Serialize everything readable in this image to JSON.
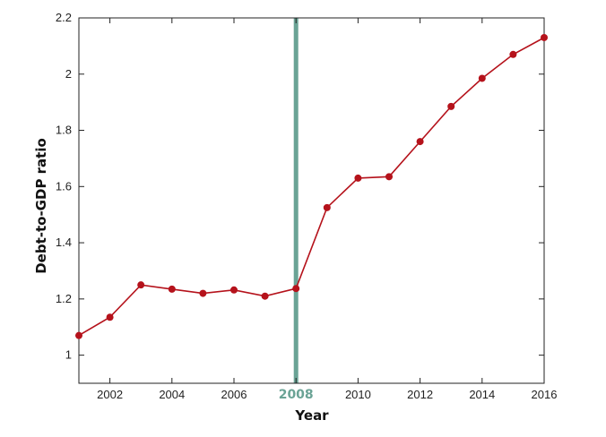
{
  "chart_data": {
    "type": "line",
    "title": "",
    "xlabel": "Year",
    "ylabel": "Debt-to-GDP ratio",
    "xlim": [
      2001,
      2016
    ],
    "ylim": [
      0.9,
      2.2
    ],
    "xticks": [
      2002,
      2004,
      2006,
      2008,
      2010,
      2012,
      2014,
      2016
    ],
    "xtick_labels": [
      "2002",
      "2004",
      "2006",
      "2008",
      "2010",
      "2012",
      "2014",
      "2016"
    ],
    "yticks": [
      1,
      1.2,
      1.4,
      1.6,
      1.8,
      2,
      2.2
    ],
    "ytick_labels": [
      "1",
      "1.2",
      "1.4",
      "1.6",
      "1.8",
      "2",
      "2.2"
    ],
    "grid": false,
    "highlight": {
      "x": 2008,
      "label": "2008",
      "color": "#6aa395"
    },
    "series": [
      {
        "color": "#b5121b",
        "x": [
          2001,
          2002,
          2003,
          2004,
          2005,
          2006,
          2007,
          2008,
          2009,
          2010,
          2011,
          2012,
          2013,
          2014,
          2015,
          2016
        ],
        "y": [
          1.07,
          1.135,
          1.25,
          1.235,
          1.22,
          1.232,
          1.21,
          1.237,
          1.525,
          1.63,
          1.635,
          1.76,
          1.885,
          1.985,
          2.07,
          2.13
        ]
      }
    ]
  }
}
